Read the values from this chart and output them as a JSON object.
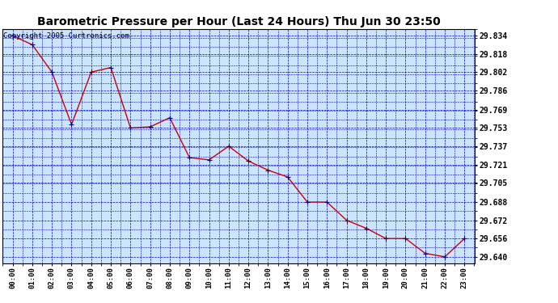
{
  "title": "Barometric Pressure per Hour (Last 24 Hours) Thu Jun 30 23:50",
  "copyright": "Copyright 2005 Curtronics.com",
  "x_labels": [
    "00:00",
    "01:00",
    "02:00",
    "03:00",
    "04:00",
    "05:00",
    "06:00",
    "07:00",
    "08:00",
    "09:00",
    "10:00",
    "11:00",
    "12:00",
    "13:00",
    "14:00",
    "15:00",
    "16:00",
    "17:00",
    "18:00",
    "19:00",
    "20:00",
    "21:00",
    "22:00",
    "23:00"
  ],
  "y_values": [
    29.834,
    29.826,
    29.802,
    29.756,
    29.802,
    29.806,
    29.753,
    29.754,
    29.762,
    29.727,
    29.725,
    29.737,
    29.724,
    29.716,
    29.71,
    29.688,
    29.688,
    29.672,
    29.665,
    29.656,
    29.656,
    29.643,
    29.64,
    29.656
  ],
  "ylim_min": 29.634,
  "ylim_max": 29.84,
  "yticks": [
    29.834,
    29.818,
    29.802,
    29.786,
    29.769,
    29.753,
    29.737,
    29.721,
    29.705,
    29.688,
    29.672,
    29.656,
    29.64
  ],
  "line_color": "#cc0000",
  "marker_color": "#000080",
  "bg_color": "#cce5ff",
  "grid_color": "#0000cc",
  "title_color": "#000000",
  "title_fontsize": 10,
  "copyright_fontsize": 6.5,
  "xtick_fontsize": 6.5,
  "ytick_fontsize": 7
}
